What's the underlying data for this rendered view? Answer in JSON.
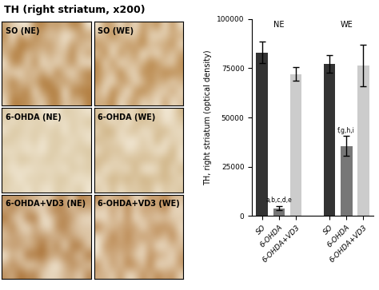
{
  "figure_title": "TH (right striatum, x200)",
  "panels": [
    {
      "label": "SO (NE)",
      "color": "#b07a3a"
    },
    {
      "label": "SO (WE)",
      "color": "#b58040"
    },
    {
      "label": "6-OHDA (NE)",
      "color": "#d9c6a0"
    },
    {
      "label": "6-OHDA (WE)",
      "color": "#cdb080"
    },
    {
      "label": "6-OHDA+VD3 (NE)",
      "color": "#a86e30"
    },
    {
      "label": "6-OHDA+VD3 (WE)",
      "color": "#b07638"
    }
  ],
  "chart_data": {
    "type": "bar",
    "y_label": "TH, right striatum (optical density)",
    "categories": [
      "SO",
      "6-OHDA",
      "6-OHDA+VD3",
      null,
      "SO",
      "6-OHDA",
      "6-OHDA+VD3"
    ],
    "values": [
      83000,
      4000,
      72000,
      null,
      77000,
      35500,
      76500
    ],
    "errors": [
      5500,
      1000,
      3500,
      null,
      4500,
      5000,
      10500
    ],
    "colors": [
      "#333333",
      "#777777",
      "#cccccc",
      null,
      "#333333",
      "#777777",
      "#cccccc"
    ],
    "groups": [
      {
        "label": "NE",
        "categories": [
          0,
          1,
          2
        ]
      },
      {
        "label": "WE",
        "categories": [
          4,
          5,
          6
        ]
      }
    ],
    "annotations": [
      {
        "text": "a,b,c,d,e",
        "category": 1
      },
      {
        "text": "f,g,h,i",
        "category": 5
      }
    ],
    "ylim": [
      0,
      100000
    ],
    "yticks": [
      0,
      25000,
      50000,
      75000,
      100000
    ]
  }
}
